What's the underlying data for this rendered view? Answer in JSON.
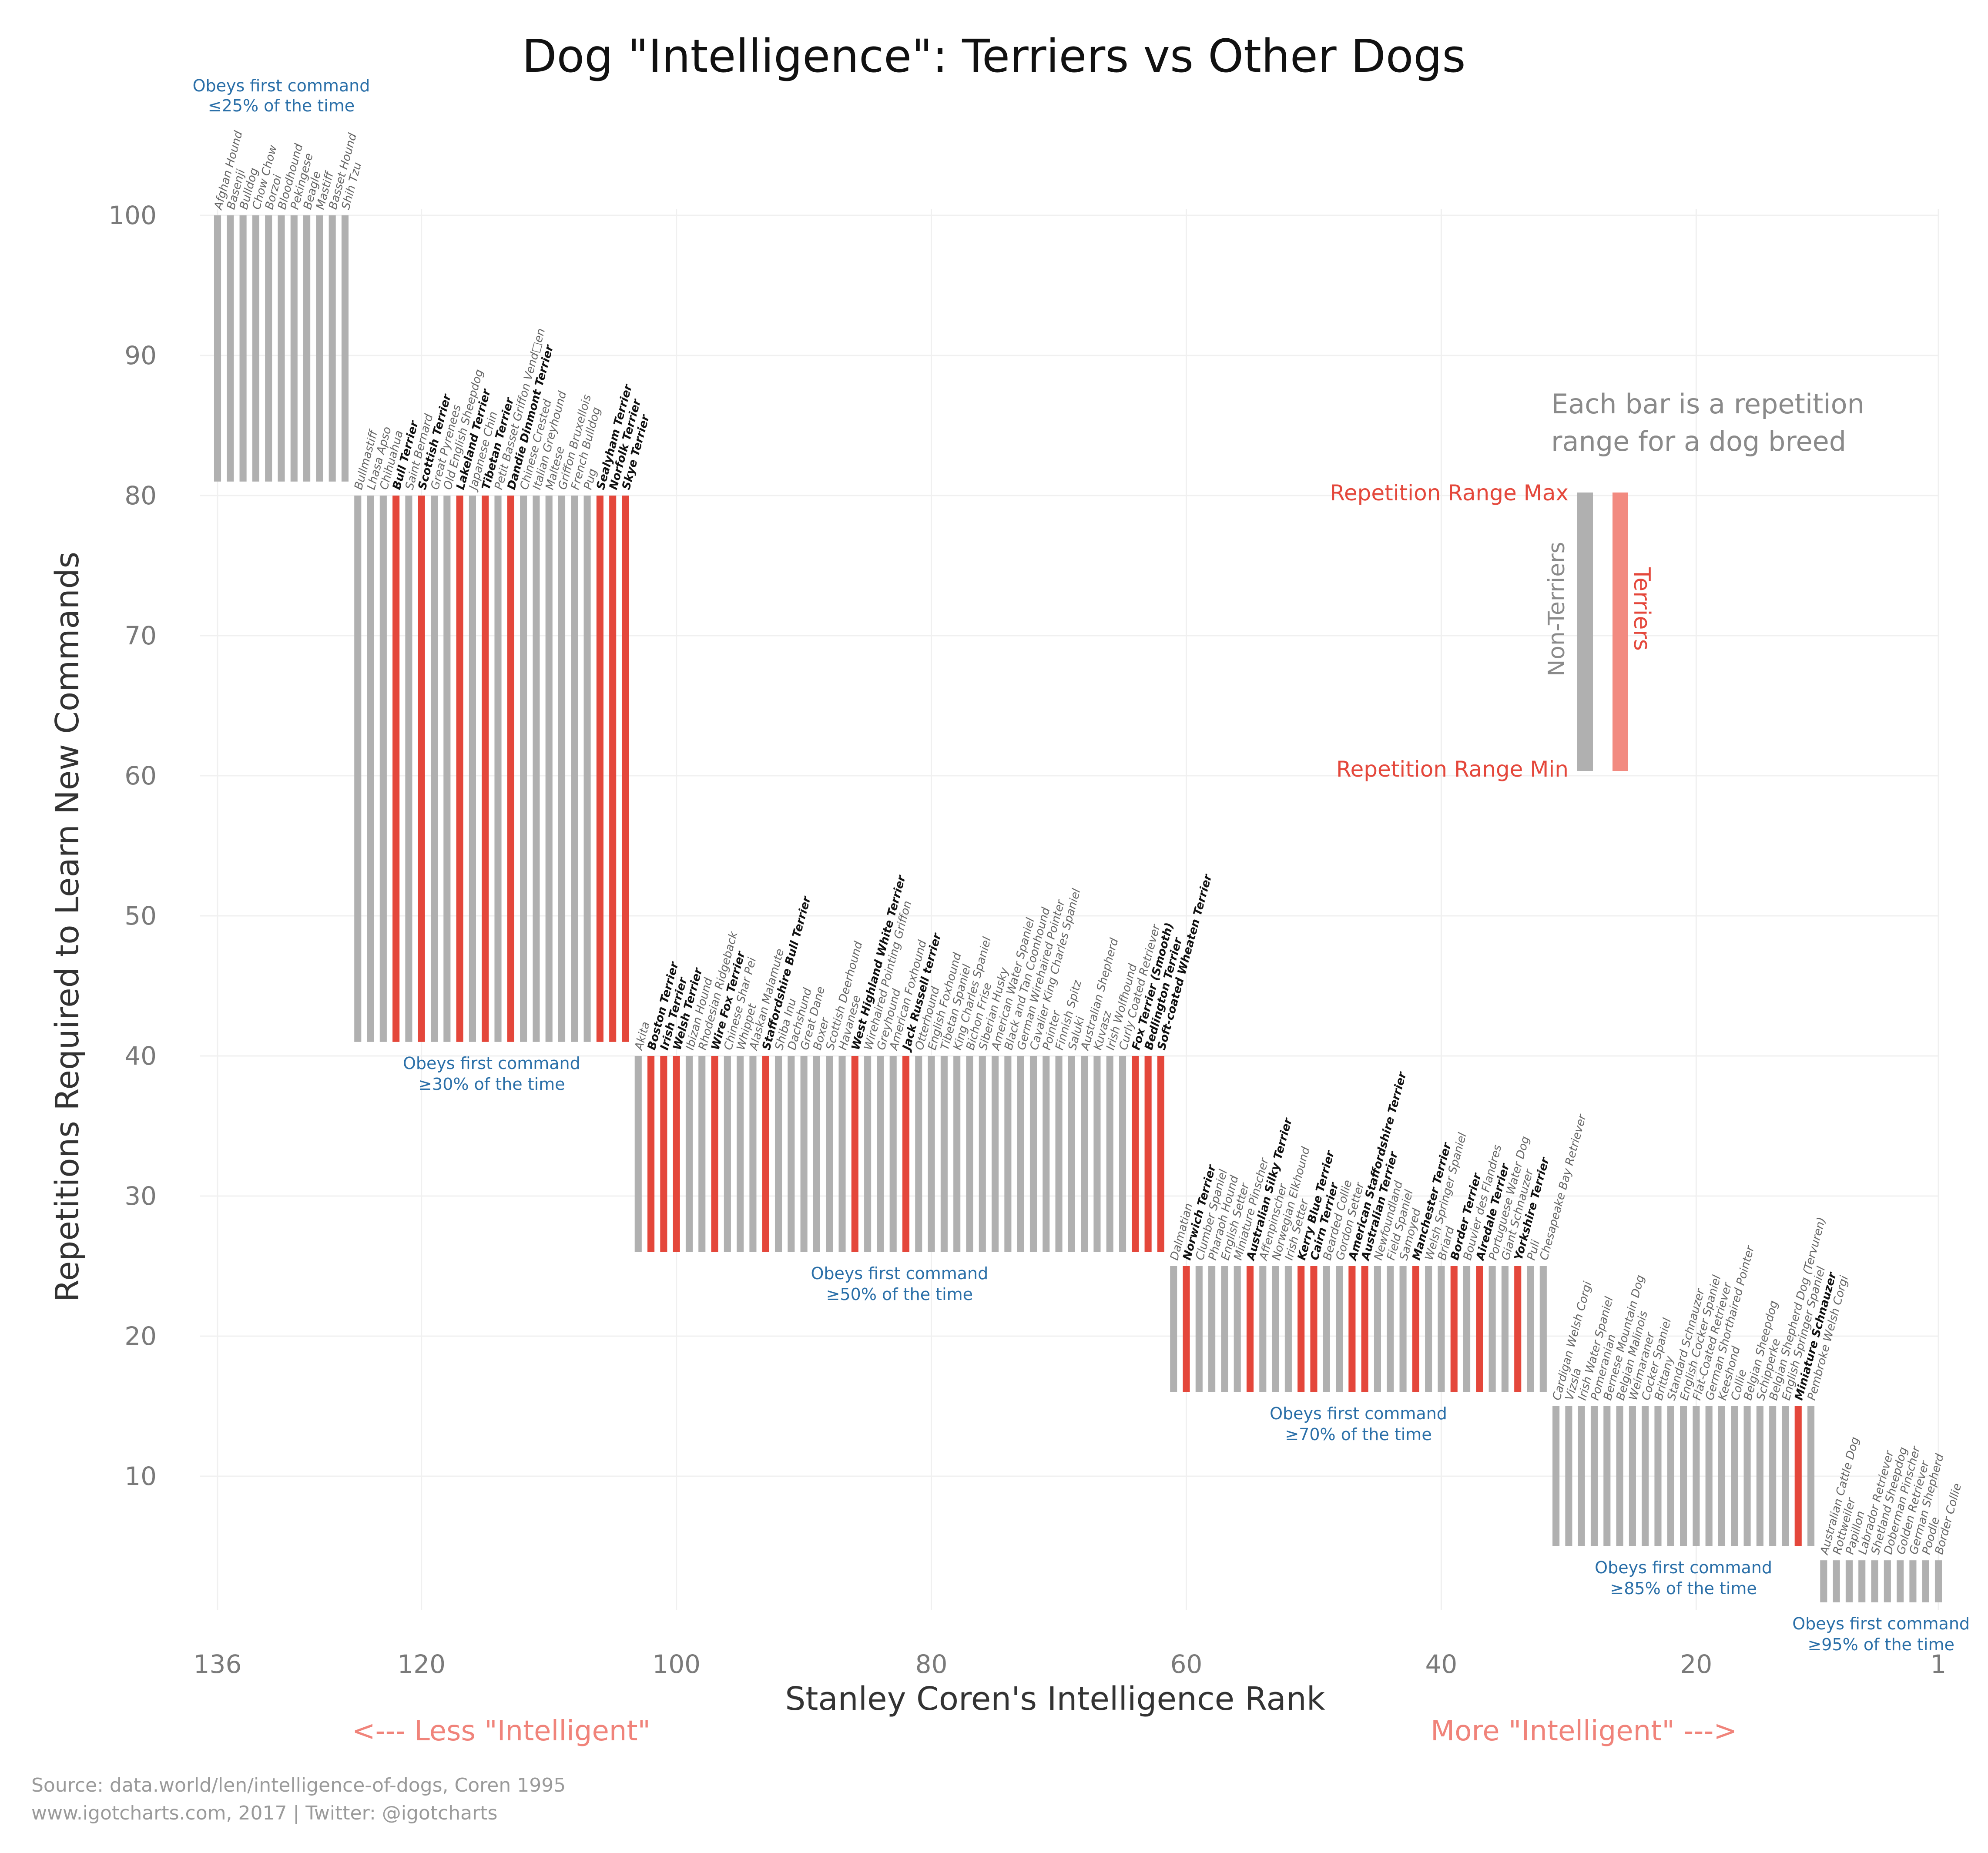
{
  "colors": {
    "terrier": "#e4473b",
    "non_terrier": "#b0b0b0",
    "legend_terrier": "#f28a80",
    "group_label": "#2a6fa8"
  },
  "chart_data": {
    "type": "bar",
    "title": "Dog \"Intelligence\": Terriers vs Other Dogs",
    "xlabel": "Stanley Coren's Intelligence Rank",
    "ylabel": "Repetitions Required to Learn New Commands",
    "x_ticks": [
      "136",
      "120",
      "100",
      "80",
      "60",
      "40",
      "20",
      "1"
    ],
    "y_ticks": [
      "10",
      "20",
      "30",
      "40",
      "50",
      "60",
      "70",
      "80",
      "90",
      "100"
    ],
    "x_range": [
      136,
      1
    ],
    "ylim": [
      0,
      100
    ],
    "grid": true,
    "groups": [
      {
        "label_line1": "Obeys first command",
        "label_line2": "≤25% of the time",
        "rep_min": 81,
        "rep_max": 100,
        "breeds": [
          {
            "name": "Afghan Hound",
            "terrier": false
          },
          {
            "name": "Basenji",
            "terrier": false
          },
          {
            "name": "Bulldog",
            "terrier": false
          },
          {
            "name": "Chow Chow",
            "terrier": false
          },
          {
            "name": "Borzoi",
            "terrier": false
          },
          {
            "name": "Bloodhound",
            "terrier": false
          },
          {
            "name": "Pekingese",
            "terrier": false
          },
          {
            "name": "Beagle",
            "terrier": false
          },
          {
            "name": "Mastiff",
            "terrier": false
          },
          {
            "name": "Basset Hound",
            "terrier": false
          },
          {
            "name": "Shih Tzu",
            "terrier": false
          }
        ]
      },
      {
        "label_line1": "Obeys first command",
        "label_line2": "≥30% of the time",
        "rep_min": 41,
        "rep_max": 80,
        "breeds": [
          {
            "name": "Bullmastiff",
            "terrier": false
          },
          {
            "name": "Lhasa Apso",
            "terrier": false
          },
          {
            "name": "Chihuahua",
            "terrier": false
          },
          {
            "name": "Bull Terrier",
            "terrier": true
          },
          {
            "name": "Saint Bernard",
            "terrier": false
          },
          {
            "name": "Scottish Terrier",
            "terrier": true
          },
          {
            "name": "Great Pyrenees",
            "terrier": false
          },
          {
            "name": "Old English Sheepdog",
            "terrier": false
          },
          {
            "name": "Lakeland Terrier",
            "terrier": true
          },
          {
            "name": "Japanese Chin",
            "terrier": false
          },
          {
            "name": "Tibetan Terrier",
            "terrier": true
          },
          {
            "name": "Petit Basset Griffon Vend□en",
            "terrier": false
          },
          {
            "name": "Dandie Dinmont Terrier",
            "terrier": true
          },
          {
            "name": "Chinese Crested",
            "terrier": false
          },
          {
            "name": "Italian Greyhound",
            "terrier": false
          },
          {
            "name": "Maltese",
            "terrier": false
          },
          {
            "name": "Griffon Bruxellois",
            "terrier": false
          },
          {
            "name": "French Bulldog",
            "terrier": false
          },
          {
            "name": "Pug",
            "terrier": false
          },
          {
            "name": "Sealyham Terrier",
            "terrier": true
          },
          {
            "name": "Norfolk Terrier",
            "terrier": true
          },
          {
            "name": "Skye Terrier",
            "terrier": true
          }
        ]
      },
      {
        "label_line1": "Obeys first command",
        "label_line2": "≥50% of the time",
        "rep_min": 26,
        "rep_max": 40,
        "breeds": [
          {
            "name": "Akita",
            "terrier": false
          },
          {
            "name": "Boston Terrier",
            "terrier": true
          },
          {
            "name": "Irish Terrier",
            "terrier": true
          },
          {
            "name": "Welsh Terrier",
            "terrier": true
          },
          {
            "name": "Ibizan Hound",
            "terrier": false
          },
          {
            "name": "Rhodesian Ridgeback",
            "terrier": false
          },
          {
            "name": "Wire Fox Terrier",
            "terrier": true
          },
          {
            "name": "Chinese Shar Pei",
            "terrier": false
          },
          {
            "name": "Whippet",
            "terrier": false
          },
          {
            "name": "Alaskan Malamute",
            "terrier": false
          },
          {
            "name": "Staffordshire Bull Terrier",
            "terrier": true
          },
          {
            "name": "Shiba Inu",
            "terrier": false
          },
          {
            "name": "Dachshund",
            "terrier": false
          },
          {
            "name": "Great Dane",
            "terrier": false
          },
          {
            "name": "Boxer",
            "terrier": false
          },
          {
            "name": "Scottish Deerhound",
            "terrier": false
          },
          {
            "name": "Havanese",
            "terrier": false
          },
          {
            "name": "West Highland White Terrier",
            "terrier": true
          },
          {
            "name": "Wirehaired Pointing Griffon",
            "terrier": false
          },
          {
            "name": "Greyhound",
            "terrier": false
          },
          {
            "name": "American Foxhound",
            "terrier": false
          },
          {
            "name": "Jack Russell terrier",
            "terrier": true
          },
          {
            "name": "Otterhound",
            "terrier": false
          },
          {
            "name": "English Foxhound",
            "terrier": false
          },
          {
            "name": "Tibetan Spaniel",
            "terrier": false
          },
          {
            "name": "King Charles Spaniel",
            "terrier": false
          },
          {
            "name": "Bichon Frise",
            "terrier": false
          },
          {
            "name": "Siberian Husky",
            "terrier": false
          },
          {
            "name": "American Water Spaniel",
            "terrier": false
          },
          {
            "name": "Black and Tan Coonhound",
            "terrier": false
          },
          {
            "name": "German Wirehaired Pointer",
            "terrier": false
          },
          {
            "name": "Cavalier King Charles Spaniel",
            "terrier": false
          },
          {
            "name": "Pointer",
            "terrier": false
          },
          {
            "name": "Finnish Spitz",
            "terrier": false
          },
          {
            "name": "Saluki",
            "terrier": false
          },
          {
            "name": "Australian Shepherd",
            "terrier": false
          },
          {
            "name": "Kuvasz",
            "terrier": false
          },
          {
            "name": "Irish Wolfhound",
            "terrier": false
          },
          {
            "name": "Curly Coated Retriever",
            "terrier": false
          },
          {
            "name": "Fox Terrier (Smooth)",
            "terrier": true
          },
          {
            "name": "Bedlington Terrier",
            "terrier": true
          },
          {
            "name": "Soft-coated Wheaten Terrier",
            "terrier": true
          }
        ]
      },
      {
        "label_line1": "Obeys first command",
        "label_line2": "≥70% of the time",
        "rep_min": 16,
        "rep_max": 25,
        "breeds": [
          {
            "name": "Dalmatian",
            "terrier": false
          },
          {
            "name": "Norwich Terrier",
            "terrier": true
          },
          {
            "name": "Clumber Spaniel",
            "terrier": false
          },
          {
            "name": "Pharaoh Hound",
            "terrier": false
          },
          {
            "name": "English Setter",
            "terrier": false
          },
          {
            "name": "Miniature Pinscher",
            "terrier": false
          },
          {
            "name": "Australian Silky Terrier",
            "terrier": true
          },
          {
            "name": "Affenpinscher",
            "terrier": false
          },
          {
            "name": "Norwegian Elkhound",
            "terrier": false
          },
          {
            "name": "Irish Setter",
            "terrier": false
          },
          {
            "name": "Kerry Blue Terrier",
            "terrier": true
          },
          {
            "name": "Cairn Terrier",
            "terrier": true
          },
          {
            "name": "Bearded Collie",
            "terrier": false
          },
          {
            "name": "Gordon Setter",
            "terrier": false
          },
          {
            "name": "American Staffordshire Terrier",
            "terrier": true
          },
          {
            "name": "Australian Terrier",
            "terrier": true
          },
          {
            "name": "Newfoundland",
            "terrier": false
          },
          {
            "name": "Field Spaniel",
            "terrier": false
          },
          {
            "name": "Samoyed",
            "terrier": false
          },
          {
            "name": "Manchester Terrier",
            "terrier": true
          },
          {
            "name": "Welsh Springer Spaniel",
            "terrier": false
          },
          {
            "name": "Briard",
            "terrier": false
          },
          {
            "name": "Border Terrier",
            "terrier": true
          },
          {
            "name": "Bouvier des Flandres",
            "terrier": false
          },
          {
            "name": "Airedale Terrier",
            "terrier": true
          },
          {
            "name": "Portuguese Water Dog",
            "terrier": false
          },
          {
            "name": "Giant Schnauzer",
            "terrier": false
          },
          {
            "name": "Yorkshire Terrier",
            "terrier": true
          },
          {
            "name": "Puli",
            "terrier": false
          },
          {
            "name": "Chesapeake Bay Retriever",
            "terrier": false
          }
        ]
      },
      {
        "label_line1": "Obeys first command",
        "label_line2": "≥85% of the time",
        "rep_min": 5,
        "rep_max": 15,
        "breeds": [
          {
            "name": "Cardigan Welsh Corgi",
            "terrier": false
          },
          {
            "name": "Vizsla",
            "terrier": false
          },
          {
            "name": "Irish Water Spaniel",
            "terrier": false
          },
          {
            "name": "Pomeranian",
            "terrier": false
          },
          {
            "name": "Bernese Mountain Dog",
            "terrier": false
          },
          {
            "name": "Belgian Malinois",
            "terrier": false
          },
          {
            "name": "Weimaraner",
            "terrier": false
          },
          {
            "name": "Cocker Spaniel",
            "terrier": false
          },
          {
            "name": "Brittany",
            "terrier": false
          },
          {
            "name": "Standard Schnauzer",
            "terrier": false
          },
          {
            "name": "English Cocker Spaniel",
            "terrier": false
          },
          {
            "name": "Flat-Coated Retriever",
            "terrier": false
          },
          {
            "name": "German Shorthaired Pointer",
            "terrier": false
          },
          {
            "name": "Keeshond",
            "terrier": false
          },
          {
            "name": "Collie",
            "terrier": false
          },
          {
            "name": "Belgian Sheepdog",
            "terrier": false
          },
          {
            "name": "Schipperke",
            "terrier": false
          },
          {
            "name": "Belgian Shepherd Dog (Tervuren)",
            "terrier": false
          },
          {
            "name": "English Springer Spaniel",
            "terrier": false
          },
          {
            "name": "Miniature Schnauzer",
            "terrier": true
          },
          {
            "name": "Pembroke Welsh Corgi",
            "terrier": false
          }
        ]
      },
      {
        "label_line1": "Obeys first command",
        "label_line2": "≥95% of the time",
        "rep_min": 1,
        "rep_max": 4,
        "breeds": [
          {
            "name": "Australian Cattle Dog",
            "terrier": false
          },
          {
            "name": "Rottweiler",
            "terrier": false
          },
          {
            "name": "Papillon",
            "terrier": false
          },
          {
            "name": "Labrador Retriever",
            "terrier": false
          },
          {
            "name": "Shetland Sheepdog",
            "terrier": false
          },
          {
            "name": "Doberman Pinscher",
            "terrier": false
          },
          {
            "name": "Golden Retriever",
            "terrier": false
          },
          {
            "name": "German Shepherd",
            "terrier": false
          },
          {
            "name": "Poodle",
            "terrier": false
          },
          {
            "name": "Border Collie",
            "terrier": false
          }
        ]
      }
    ],
    "legend": {
      "caption_line1": "Each bar is a repetition",
      "caption_line2": "range for a dog breed",
      "max_label": "Repetition Range Max",
      "min_label": "Repetition Range Min",
      "non_terrier_label": "Non-Terriers",
      "terrier_label": "Terriers",
      "placement": "right"
    }
  },
  "annotations": {
    "less": "<--- Less \"Intelligent\"",
    "more": "More \"Intelligent\" --->"
  },
  "source": {
    "line1": "Source: data.world/len/intelligence-of-dogs, Coren 1995",
    "line2": "www.igotcharts.com, 2017 | Twitter: @igotcharts"
  }
}
